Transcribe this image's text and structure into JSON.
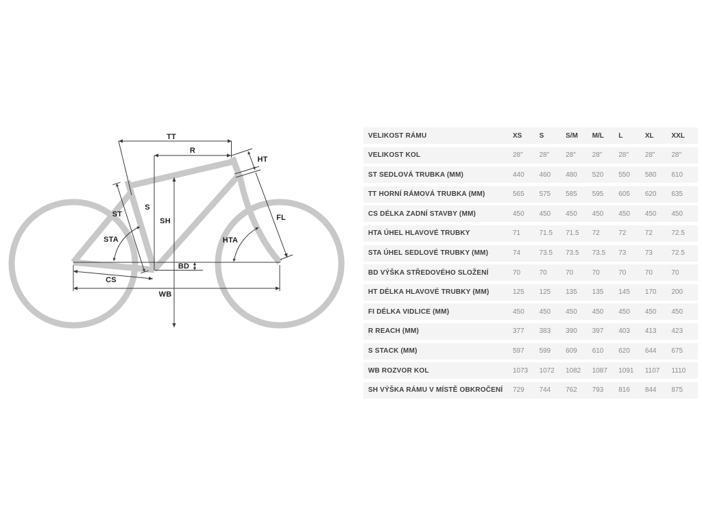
{
  "diagram": {
    "labels": {
      "tt": "TT",
      "r": "R",
      "ht": "HT",
      "s": "S",
      "sh": "SH",
      "st": "ST",
      "sta": "STA",
      "hta": "HTA",
      "fl": "FL",
      "bd": "BD",
      "cs": "CS",
      "wb": "WB"
    },
    "frame_color": "#c8c8c8",
    "dimension_line_color": "#3a3a3a"
  },
  "table": {
    "header": {
      "label": "VELIKOST RÁMU",
      "sizes": [
        "XS",
        "S",
        "S/M",
        "M/L",
        "L",
        "XL",
        "XXL"
      ]
    },
    "rows": [
      {
        "label": "VELIKOST KOL",
        "values": [
          "28\"",
          "28\"",
          "28\"",
          "28\"",
          "28\"",
          "28\"",
          "28\""
        ]
      },
      {
        "label": "ST SEDLOVÁ TRUBKA (MM)",
        "values": [
          "440",
          "460",
          "480",
          "520",
          "550",
          "580",
          "610"
        ]
      },
      {
        "label": "TT HORNÍ RÁMOVÁ TRUBKA (MM)",
        "values": [
          "565",
          "575",
          "585",
          "595",
          "605",
          "620",
          "635"
        ]
      },
      {
        "label": "CS DÉLKA ZADNÍ STAVBY (MM)",
        "values": [
          "450",
          "450",
          "450",
          "450",
          "450",
          "450",
          "450"
        ]
      },
      {
        "label": "HTA ÚHEL HLAVOVÉ TRUBKY",
        "values": [
          "71",
          "71.5",
          "71.5",
          "72",
          "72",
          "72",
          "72.5"
        ]
      },
      {
        "label": "STA ÚHEL SEDLOVÉ TRUBKY (MM)",
        "values": [
          "74",
          "73.5",
          "73.5",
          "73.5",
          "73",
          "73",
          "72.5"
        ]
      },
      {
        "label": "BD VÝŠKA STŘEDOVÉHO SLOŽENÍ",
        "values": [
          "70",
          "70",
          "70",
          "70",
          "70",
          "70",
          "70"
        ]
      },
      {
        "label": "HT DÉLKA HLAVOVÉ TRUBKY (MM)",
        "values": [
          "125",
          "125",
          "135",
          "135",
          "145",
          "170",
          "200"
        ]
      },
      {
        "label": "FI DÉLKA VIDLICE (MM)",
        "values": [
          "450",
          "450",
          "450",
          "450",
          "450",
          "450",
          "450"
        ]
      },
      {
        "label": "R REACH (MM)",
        "values": [
          "377",
          "383",
          "390",
          "397",
          "403",
          "413",
          "423"
        ]
      },
      {
        "label": "S STACK (MM)",
        "values": [
          "597",
          "599",
          "609",
          "610",
          "620",
          "644",
          "675"
        ]
      },
      {
        "label": "WB ROZVOR KOL",
        "values": [
          "1073",
          "1072",
          "1082",
          "1087",
          "1091",
          "1107",
          "1110"
        ]
      },
      {
        "label": "SH VÝŠKA RÁMU V MÍSTĚ OBKROČENÍ",
        "values": [
          "729",
          "744",
          "762",
          "793",
          "816",
          "844",
          "875"
        ]
      }
    ]
  }
}
